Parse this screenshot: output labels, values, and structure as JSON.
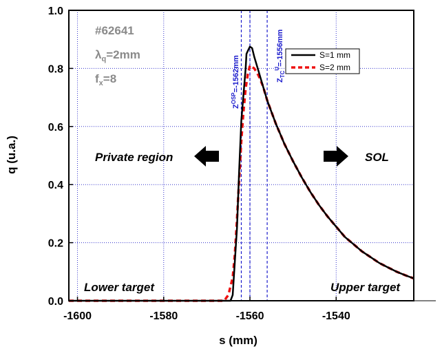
{
  "chart_data": {
    "type": "line",
    "xlabel": "s (mm)",
    "ylabel": "q (u.a.)",
    "xlim": [
      -1602,
      -1522
    ],
    "ylim": [
      0,
      1.0
    ],
    "xticks": [
      -1600,
      -1580,
      -1560,
      -1540
    ],
    "xtick_labels": [
      "-1600",
      "-1580",
      "-1560",
      "-1540"
    ],
    "yticks": [
      0,
      0.2,
      0.4,
      0.6,
      0.8,
      1.0
    ],
    "ytick_labels": [
      "0.0",
      "0.2",
      "0.4",
      "0.6",
      "0.8",
      "1.0"
    ],
    "grid": true,
    "legend_position": "top-right",
    "annotations": {
      "shot": "#62641",
      "lambda_q": "λq=2mm",
      "fx": "fx=8",
      "private_region": "Private region",
      "sol": "SOL",
      "lower_target": "Lower target",
      "upper_target": "Upper target"
    },
    "vlines": [
      {
        "x": -1562,
        "label": "Z^OSP=-1562mm"
      },
      {
        "x": -1560,
        "label": ""
      },
      {
        "x": -1556,
        "label": "Z_TC^U=-1556mm"
      }
    ],
    "series": [
      {
        "name": "S=1 mm",
        "color": "#000000",
        "style": "solid",
        "x": [
          -1602,
          -1564.5,
          -1564,
          -1563,
          -1562.5,
          -1562,
          -1561,
          -1560.8,
          -1560.5,
          -1560,
          -1559.5,
          -1559,
          -1558,
          -1557,
          -1556,
          -1555,
          -1554,
          -1553,
          -1552,
          -1550,
          -1548,
          -1546,
          -1544,
          -1542,
          -1540,
          -1538,
          -1536,
          -1534,
          -1532,
          -1530,
          -1528,
          -1526,
          -1524,
          -1522
        ],
        "y": [
          0,
          0,
          0.02,
          0.25,
          0.45,
          0.62,
          0.8,
          0.85,
          0.86,
          0.875,
          0.87,
          0.84,
          0.79,
          0.74,
          0.69,
          0.65,
          0.61,
          0.575,
          0.54,
          0.48,
          0.425,
          0.375,
          0.33,
          0.29,
          0.255,
          0.22,
          0.195,
          0.17,
          0.15,
          0.13,
          0.115,
          0.1,
          0.088,
          0.077
        ]
      },
      {
        "name": "S=2 mm",
        "color": "#ee1111",
        "style": "dashed",
        "x": [
          -1602,
          -1566,
          -1565,
          -1564,
          -1563.5,
          -1563,
          -1562.5,
          -1562,
          -1561.5,
          -1561,
          -1560.5,
          -1560,
          -1559,
          -1558,
          -1557,
          -1556,
          -1555,
          -1554,
          -1553,
          -1552,
          -1550,
          -1548,
          -1546,
          -1544,
          -1542,
          -1540,
          -1538,
          -1536,
          -1534,
          -1532,
          -1530,
          -1528,
          -1526,
          -1524,
          -1522
        ],
        "y": [
          0,
          0,
          0.02,
          0.08,
          0.16,
          0.28,
          0.42,
          0.55,
          0.65,
          0.73,
          0.78,
          0.81,
          0.8,
          0.775,
          0.74,
          0.69,
          0.65,
          0.61,
          0.575,
          0.54,
          0.48,
          0.425,
          0.375,
          0.33,
          0.29,
          0.255,
          0.22,
          0.195,
          0.17,
          0.15,
          0.13,
          0.115,
          0.1,
          0.088,
          0.077
        ]
      }
    ]
  }
}
